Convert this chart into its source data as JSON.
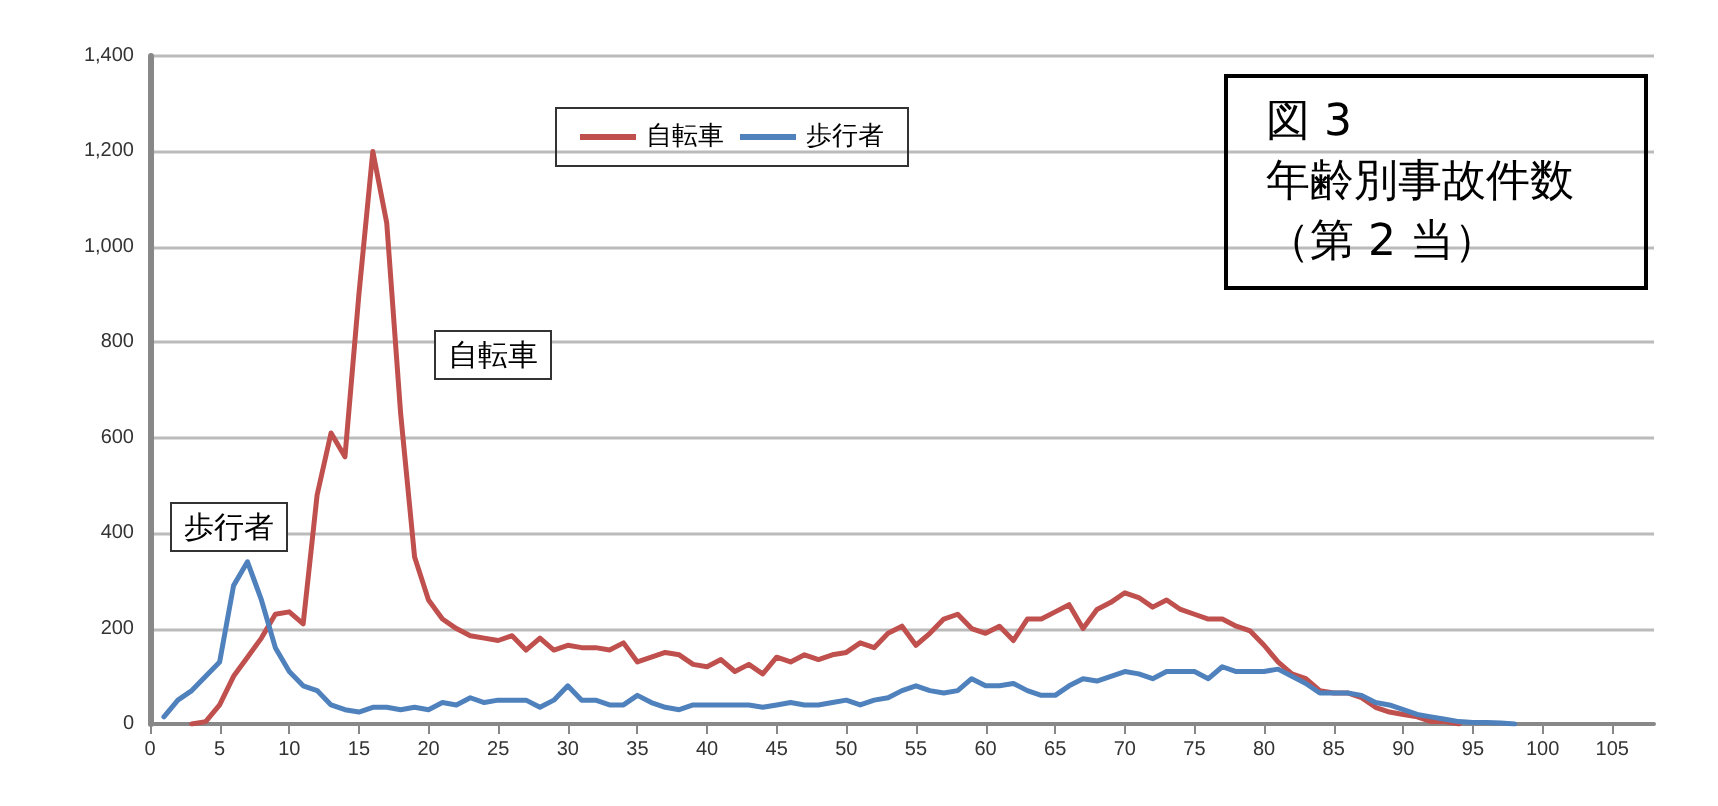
{
  "chart_data": {
    "type": "line",
    "title": "図 3",
    "subtitle": "年齢別事故件数（第 2 当）",
    "xlim": [
      0,
      108
    ],
    "xticks": [
      0,
      5,
      10,
      15,
      20,
      25,
      30,
      35,
      40,
      45,
      50,
      55,
      60,
      65,
      70,
      75,
      80,
      85,
      90,
      95,
      100,
      105
    ],
    "ylim": [
      0,
      1400
    ],
    "yticks": [
      {
        "value": 0,
        "label": "0"
      },
      {
        "value": 200,
        "label": "200"
      },
      {
        "value": 400,
        "label": "400"
      },
      {
        "value": 600,
        "label": "600"
      },
      {
        "value": 800,
        "label": "800"
      },
      {
        "value": 1000,
        "label": "1,000"
      },
      {
        "value": 1200,
        "label": "1,200"
      },
      {
        "value": 1400,
        "label": "1,400"
      }
    ],
    "grid": "y",
    "legend": "top",
    "marker": "none",
    "line_style": "solid",
    "annotations": [
      "自転車",
      "歩行者"
    ],
    "series": [
      {
        "name": "自転車",
        "color": "#c0504d",
        "x": [
          3,
          4,
          5,
          6,
          7,
          8,
          9,
          10,
          11,
          12,
          13,
          14,
          15,
          16,
          17,
          18,
          19,
          20,
          21,
          22,
          23,
          24,
          25,
          26,
          27,
          28,
          29,
          30,
          31,
          32,
          33,
          34,
          35,
          36,
          37,
          38,
          39,
          40,
          41,
          42,
          43,
          44,
          45,
          46,
          47,
          48,
          49,
          50,
          51,
          52,
          53,
          54,
          55,
          56,
          57,
          58,
          59,
          60,
          61,
          62,
          63,
          64,
          65,
          66,
          67,
          68,
          69,
          70,
          71,
          72,
          73,
          74,
          75,
          76,
          77,
          78,
          79,
          80,
          81,
          82,
          83,
          84,
          85,
          86,
          87,
          88,
          89,
          90,
          91,
          92,
          93,
          94
        ],
        "values": [
          0,
          5,
          40,
          100,
          140,
          180,
          230,
          235,
          210,
          480,
          610,
          560,
          900,
          1200,
          1050,
          650,
          350,
          260,
          220,
          200,
          185,
          180,
          175,
          185,
          155,
          180,
          155,
          165,
          160,
          160,
          155,
          170,
          130,
          140,
          150,
          145,
          125,
          120,
          135,
          110,
          125,
          105,
          140,
          130,
          145,
          135,
          145,
          150,
          170,
          160,
          190,
          205,
          165,
          190,
          220,
          230,
          200,
          190,
          205,
          175,
          220,
          220,
          235,
          250,
          200,
          240,
          255,
          275,
          265,
          245,
          260,
          240,
          230,
          220,
          220,
          205,
          195,
          165,
          130,
          105,
          95,
          70,
          65,
          65,
          55,
          35,
          25,
          20,
          15,
          5,
          5,
          0
        ]
      },
      {
        "name": "歩行者",
        "color": "#4f81bd",
        "x": [
          1,
          2,
          3,
          4,
          5,
          6,
          7,
          8,
          9,
          10,
          11,
          12,
          13,
          14,
          15,
          16,
          17,
          18,
          19,
          20,
          21,
          22,
          23,
          24,
          25,
          26,
          27,
          28,
          29,
          30,
          31,
          32,
          33,
          34,
          35,
          36,
          37,
          38,
          39,
          40,
          41,
          42,
          43,
          44,
          45,
          46,
          47,
          48,
          49,
          50,
          51,
          52,
          53,
          54,
          55,
          56,
          57,
          58,
          59,
          60,
          61,
          62,
          63,
          64,
          65,
          66,
          67,
          68,
          69,
          70,
          71,
          72,
          73,
          74,
          75,
          76,
          77,
          78,
          79,
          80,
          81,
          82,
          83,
          84,
          85,
          86,
          87,
          88,
          89,
          90,
          91,
          92,
          93,
          94,
          95,
          96,
          97,
          98
        ],
        "values": [
          15,
          50,
          70,
          100,
          130,
          290,
          340,
          260,
          160,
          110,
          80,
          70,
          40,
          30,
          25,
          35,
          35,
          30,
          35,
          30,
          45,
          40,
          55,
          45,
          50,
          50,
          50,
          35,
          50,
          80,
          50,
          50,
          40,
          40,
          60,
          45,
          35,
          30,
          40,
          40,
          40,
          40,
          40,
          35,
          40,
          45,
          40,
          40,
          45,
          50,
          40,
          50,
          55,
          70,
          80,
          70,
          65,
          70,
          95,
          80,
          80,
          85,
          70,
          60,
          60,
          80,
          95,
          90,
          100,
          110,
          105,
          95,
          110,
          110,
          110,
          95,
          120,
          110,
          110,
          110,
          115,
          100,
          85,
          65,
          65,
          65,
          60,
          45,
          40,
          30,
          20,
          15,
          10,
          5,
          3,
          3,
          2,
          0
        ]
      }
    ]
  }
}
